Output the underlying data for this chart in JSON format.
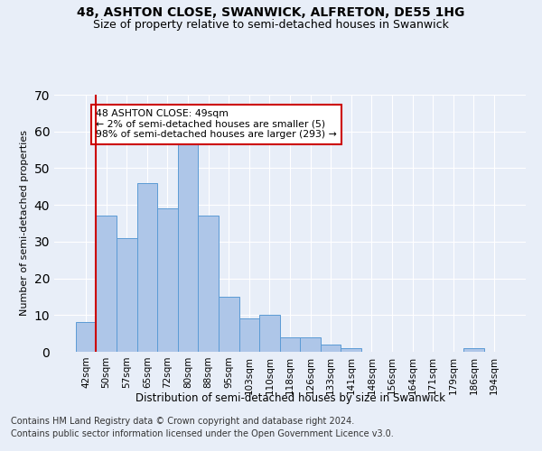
{
  "title": "48, ASHTON CLOSE, SWANWICK, ALFRETON, DE55 1HG",
  "subtitle": "Size of property relative to semi-detached houses in Swanwick",
  "xlabel": "Distribution of semi-detached houses by size in Swanwick",
  "ylabel": "Number of semi-detached properties",
  "categories": [
    "42sqm",
    "50sqm",
    "57sqm",
    "65sqm",
    "72sqm",
    "80sqm",
    "88sqm",
    "95sqm",
    "103sqm",
    "110sqm",
    "118sqm",
    "126sqm",
    "133sqm",
    "141sqm",
    "148sqm",
    "156sqm",
    "164sqm",
    "171sqm",
    "179sqm",
    "186sqm",
    "194sqm"
  ],
  "values": [
    8,
    37,
    31,
    46,
    39,
    58,
    37,
    15,
    9,
    10,
    4,
    4,
    2,
    1,
    0,
    0,
    0,
    0,
    0,
    1,
    0
  ],
  "bar_color": "#aec6e8",
  "bar_edge_color": "#5b9bd5",
  "highlight_color": "#cc0000",
  "annotation_text": "48 ASHTON CLOSE: 49sqm\n← 2% of semi-detached houses are smaller (5)\n98% of semi-detached houses are larger (293) →",
  "annotation_box_color": "#ffffff",
  "annotation_box_edge": "#cc0000",
  "ylim": [
    0,
    70
  ],
  "yticks": [
    0,
    10,
    20,
    30,
    40,
    50,
    60,
    70
  ],
  "footer1": "Contains HM Land Registry data © Crown copyright and database right 2024.",
  "footer2": "Contains public sector information licensed under the Open Government Licence v3.0.",
  "background_color": "#e8eef8",
  "plot_bg_color": "#e8eef8",
  "grid_color": "#ffffff",
  "title_fontsize": 10,
  "subtitle_fontsize": 9,
  "xlabel_fontsize": 8.5,
  "ylabel_fontsize": 8,
  "footer_fontsize": 7,
  "tick_fontsize": 7.5
}
